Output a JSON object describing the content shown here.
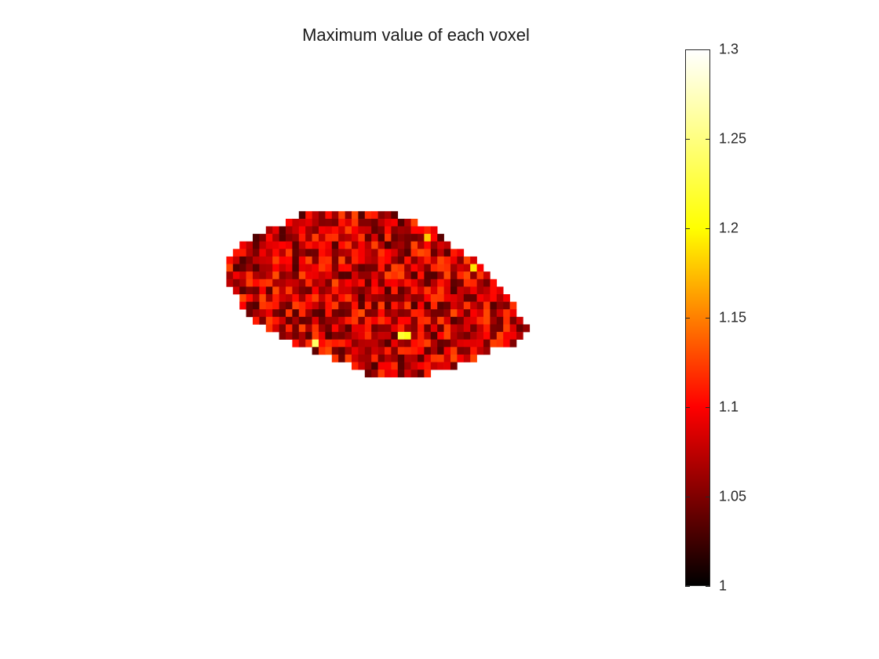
{
  "chart_data": {
    "type": "heatmap",
    "title": "Maximum value of each voxel",
    "xlabel": "",
    "ylabel": "",
    "colormap": "hot",
    "colormap_stops": [
      "#000000",
      "#ff0000",
      "#ffff00",
      "#ffffff"
    ],
    "background_color": "#ffffff",
    "color_range": [
      1,
      1.3
    ],
    "colorbar": {
      "location": "right",
      "ticks": [
        1,
        1.05,
        1.1,
        1.15,
        1.2,
        1.25,
        1.3
      ],
      "tick_labels": [
        "1",
        "1.05",
        "1.1",
        "1.15",
        "1.2",
        "1.25",
        "1.3"
      ]
    },
    "grid": false,
    "axes_visible": false,
    "grid_size": {
      "rows": 26,
      "cols": 50
    },
    "row_spans": [
      {
        "row": 2,
        "cols": [
          12,
          26
        ]
      },
      {
        "row": 3,
        "cols": [
          10,
          29
        ]
      },
      {
        "row": 4,
        "cols": [
          7,
          32
        ]
      },
      {
        "row": 5,
        "cols": [
          5,
          33
        ]
      },
      {
        "row": 6,
        "cols": [
          3,
          34
        ]
      },
      {
        "row": 7,
        "cols": [
          2,
          36
        ]
      },
      {
        "row": 8,
        "cols": [
          1,
          38
        ]
      },
      {
        "row": 9,
        "cols": [
          1,
          39
        ]
      },
      {
        "row": 10,
        "cols": [
          1,
          40
        ]
      },
      {
        "row": 11,
        "cols": [
          1,
          41
        ]
      },
      {
        "row": 12,
        "cols": [
          2,
          42
        ]
      },
      {
        "row": 13,
        "cols": [
          3,
          43
        ]
      },
      {
        "row": 14,
        "cols": [
          3,
          44
        ]
      },
      {
        "row": 15,
        "cols": [
          4,
          44
        ]
      },
      {
        "row": 16,
        "cols": [
          5,
          45
        ]
      },
      {
        "row": 17,
        "cols": [
          7,
          46
        ]
      },
      {
        "row": 18,
        "cols": [
          9,
          45
        ]
      },
      {
        "row": 19,
        "cols": [
          11,
          44
        ]
      },
      {
        "row": 20,
        "cols": [
          14,
          40
        ]
      },
      {
        "row": 21,
        "cols": [
          17,
          38
        ]
      },
      {
        "row": 22,
        "cols": [
          20,
          35
        ]
      },
      {
        "row": 23,
        "cols": [
          22,
          31
        ]
      }
    ],
    "value_summary": {
      "typical_range": [
        1.03,
        1.13
      ],
      "hot_spots": [
        {
          "row": 19,
          "col": 14,
          "value": 1.24
        },
        {
          "row": 18,
          "col": 27,
          "value": 1.22
        },
        {
          "row": 18,
          "col": 28,
          "value": 1.21
        },
        {
          "row": 9,
          "col": 38,
          "value": 1.19
        },
        {
          "row": 5,
          "col": 31,
          "value": 1.18
        }
      ]
    }
  }
}
